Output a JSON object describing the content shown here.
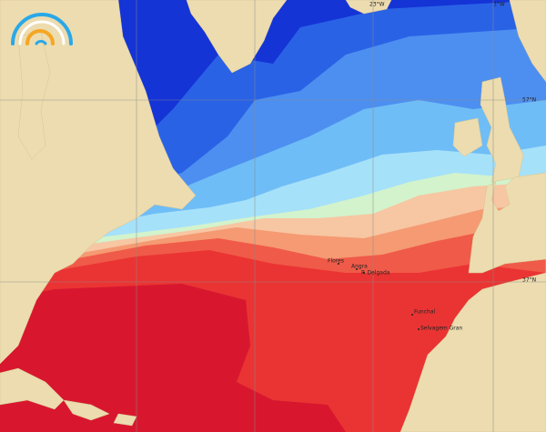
{
  "map": {
    "grid_labels": [
      "23°W",
      "3°W",
      "57°N",
      "37°N"
    ],
    "places": [
      "Flores",
      "Angra",
      "P. Delgada",
      "Funchal",
      "Selvagem Gran"
    ]
  }
}
